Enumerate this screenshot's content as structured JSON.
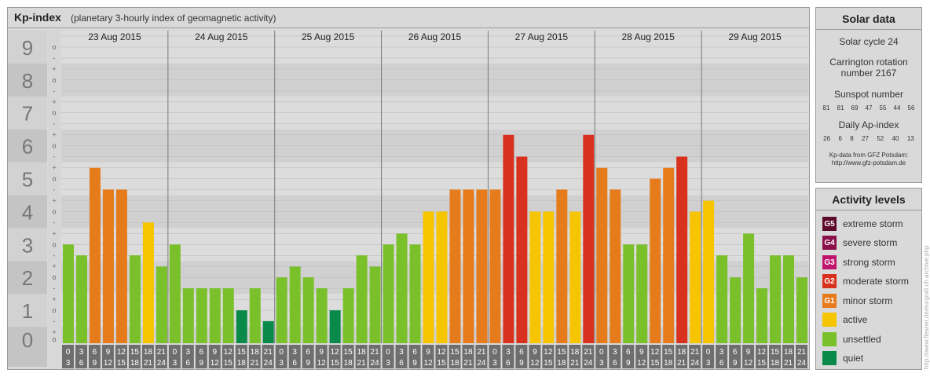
{
  "header": {
    "title": "Kp-index",
    "subtitle": "(planetary 3-hourly index of geomagnetic activity)"
  },
  "y_axis": {
    "major_labels": [
      "0",
      "1",
      "2",
      "3",
      "4",
      "5",
      "6",
      "7",
      "8",
      "9"
    ],
    "minor_labels": [
      "+",
      "o",
      "-"
    ]
  },
  "chart_data": {
    "type": "bar",
    "title": "Kp-index",
    "ylim": [
      0,
      9
    ],
    "days": [
      "23 Aug 2015",
      "24 Aug 2015",
      "25 Aug 2015",
      "26 Aug 2015",
      "27 Aug 2015",
      "28 Aug 2015",
      "29 Aug 2015"
    ],
    "interval_labels": [
      [
        "0",
        "3"
      ],
      [
        "3",
        "6"
      ],
      [
        "6",
        "9"
      ],
      [
        "9",
        "12"
      ],
      [
        "12",
        "15"
      ],
      [
        "15",
        "18"
      ],
      [
        "18",
        "21"
      ],
      [
        "21",
        "24"
      ]
    ],
    "values": [
      [
        3,
        2.67,
        5.33,
        4.67,
        4.67,
        2.67,
        3.67,
        2.33
      ],
      [
        3,
        1.67,
        1.67,
        1.67,
        1.67,
        1,
        1.67,
        0.67
      ],
      [
        2,
        2.33,
        2,
        1.67,
        1,
        1.67,
        2.67,
        2.33
      ],
      [
        3,
        3.33,
        3,
        4,
        4,
        4.67,
        4.67,
        4.67
      ],
      [
        4.67,
        6.33,
        5.67,
        4,
        4,
        4.67,
        4,
        6.33
      ],
      [
        5.33,
        4.67,
        3,
        3,
        5,
        5.33,
        5.67,
        4
      ],
      [
        4.33,
        2.67,
        2,
        3.33,
        1.67,
        2.67,
        2.67,
        2
      ]
    ]
  },
  "level_colors": {
    "quiet": "#0a8a4a",
    "unsettled": "#7ac02a",
    "active": "#f7c500",
    "minor": "#e67b1c",
    "moderate": "#d8311d",
    "strong": "#c0136c",
    "severe": "#8a0f4a",
    "extreme": "#5c0a2a"
  },
  "solar": {
    "title": "Solar data",
    "cycle": "Solar cycle 24",
    "carrington_line1": "Carrington rotation",
    "carrington_line2": "number 2167",
    "sunspot_title": "Sunspot number",
    "sunspot_numbers": [
      "81",
      "81",
      "69",
      "47",
      "55",
      "44",
      "56"
    ],
    "ap_title": "Daily Ap-index",
    "ap_numbers": [
      "26",
      "6",
      "8",
      "27",
      "52",
      "40",
      "13"
    ],
    "credit_line1": "Kp-data from GFZ Potsdam:",
    "credit_line2": "http://www.gfz-potsdam.de"
  },
  "activity": {
    "title": "Activity levels",
    "levels": [
      {
        "code": "G5",
        "label": "extreme storm",
        "color": "#5c0a2a"
      },
      {
        "code": "G4",
        "label": "severe storm",
        "color": "#8a0f4a"
      },
      {
        "code": "G3",
        "label": "strong storm",
        "color": "#c0136c"
      },
      {
        "code": "G2",
        "label": "moderate storm",
        "color": "#d8311d"
      },
      {
        "code": "G1",
        "label": "minor storm",
        "color": "#e67b1c"
      },
      {
        "code": "",
        "label": "active",
        "color": "#f7c500"
      },
      {
        "code": "",
        "label": "unsettled",
        "color": "#7ac02a"
      },
      {
        "code": "",
        "label": "quiet",
        "color": "#0a8a4a"
      }
    ]
  },
  "watermark": "http://www.flesnet.de/eurgrafi.ch archive.php"
}
